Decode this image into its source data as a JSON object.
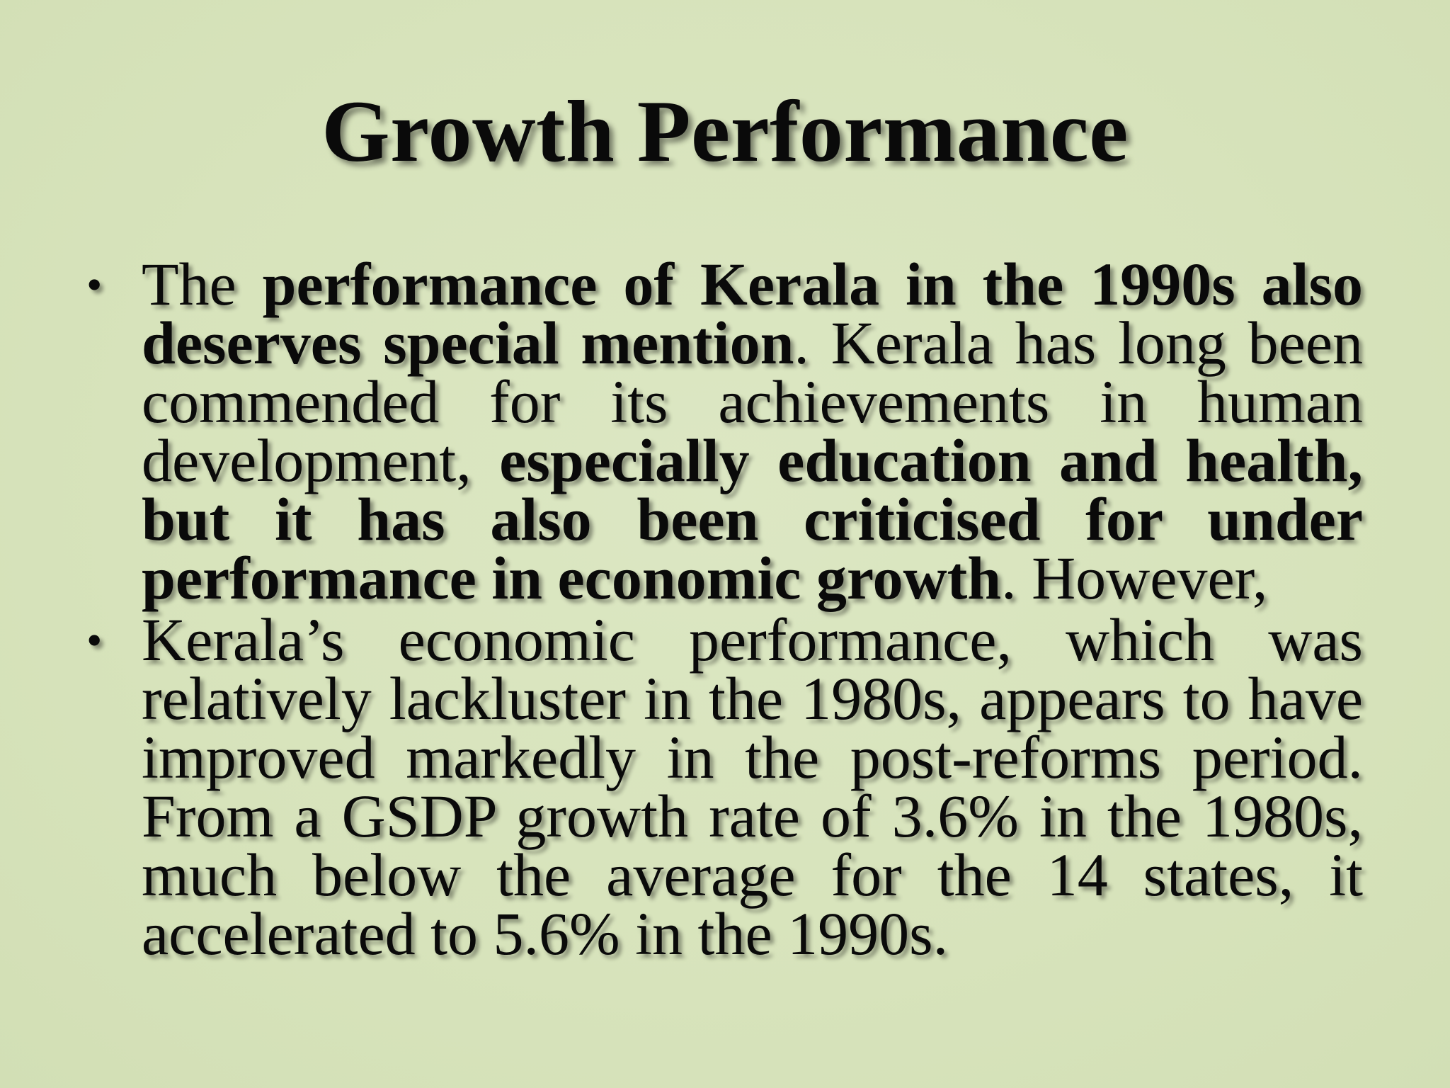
{
  "slide": {
    "title": "Growth Performance",
    "bullet_marker": "•",
    "bullets": [
      {
        "segments": [
          {
            "text": "The ",
            "bold": false
          },
          {
            "text": "performance of Kerala in the 1990s also deserves special mention",
            "bold": true
          },
          {
            "text": ". Kerala has long been commended for its achievements in human development, ",
            "bold": false
          },
          {
            "text": "especially education and health, but it has also been criticised for under performance in economic growth",
            "bold": true
          },
          {
            "text": ". However,",
            "bold": false
          }
        ]
      },
      {
        "segments": [
          {
            "text": "Kerala’s economic performance, which was relatively lackluster in the 1980s, appears to have improved markedly in the post-reforms period. From a GSDP growth rate of 3.6% in the 1980s, much below the average for the 14 states, it accelerated to 5.6% in the 1990s.",
            "bold": false
          }
        ]
      }
    ]
  },
  "colors": {
    "background": "#d8e4bd",
    "text": "#0a0a0a"
  }
}
